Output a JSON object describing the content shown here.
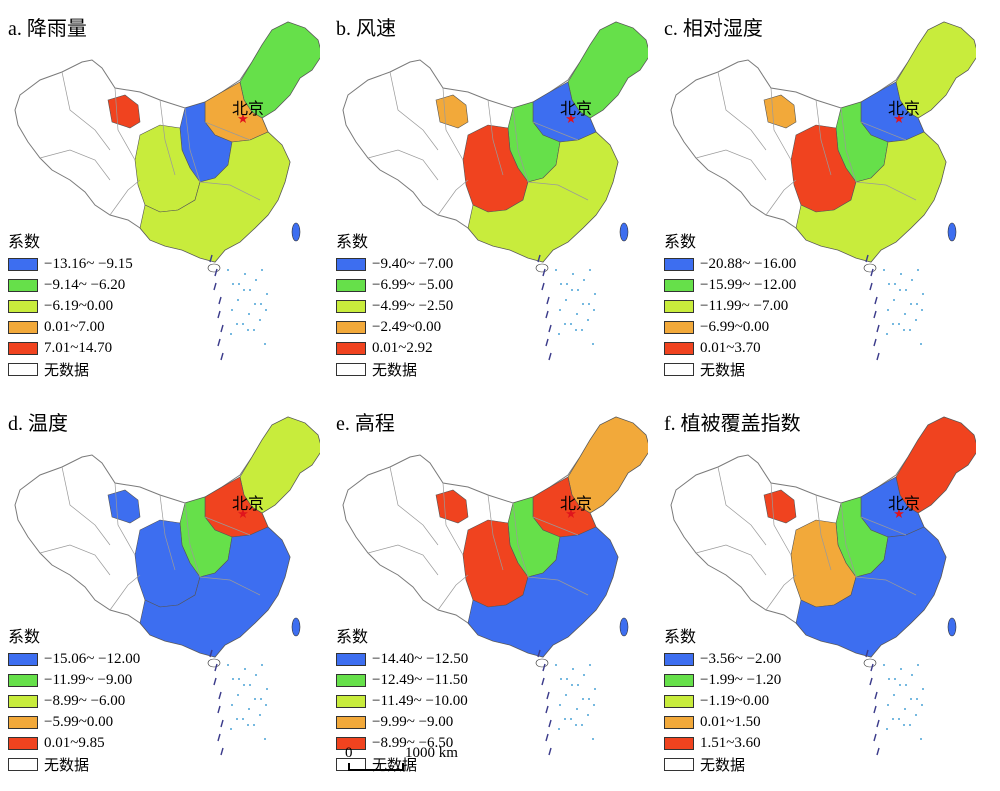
{
  "legend_title": "系数",
  "no_data_label": "无数据",
  "capital_label": "北京",
  "scale_bar": {
    "start": "0",
    "end": "1000 km"
  },
  "class_colors": [
    "#3d6ef0",
    "#66e04a",
    "#c8ec3c",
    "#f2a93a",
    "#f0431f",
    "#ffffff"
  ],
  "panels": [
    {
      "title": "a. 降雨量",
      "legend": [
        "−13.16~ −9.15",
        "−9.14~ −6.20",
        "−6.19~0.00",
        "0.01~7.00",
        "7.01~14.70"
      ],
      "dominant_classes": {
        "northeast": 1,
        "north": 3,
        "northcentral": 0,
        "central": 2,
        "south": 2,
        "west": 4
      }
    },
    {
      "title": "b. 风速",
      "legend": [
        "−9.40~ −7.00",
        "−6.99~ −5.00",
        "−4.99~ −2.50",
        "−2.49~0.00",
        "0.01~2.92"
      ],
      "dominant_classes": {
        "northeast": 1,
        "north": 0,
        "northcentral": 1,
        "central": 4,
        "south": 2,
        "west": 3
      }
    },
    {
      "title": "c. 相对湿度",
      "legend": [
        "−20.88~ −16.00",
        "−15.99~ −12.00",
        "−11.99~ −7.00",
        "−6.99~0.00",
        "0.01~3.70"
      ],
      "dominant_classes": {
        "northeast": 2,
        "north": 0,
        "northcentral": 1,
        "central": 4,
        "south": 2,
        "west": 3
      }
    },
    {
      "title": "d. 温度",
      "legend": [
        "−15.06~ −12.00",
        "−11.99~ −9.00",
        "−8.99~ −6.00",
        "−5.99~0.00",
        "0.01~9.85"
      ],
      "dominant_classes": {
        "northeast": 2,
        "north": 4,
        "northcentral": 1,
        "central": 0,
        "south": 0,
        "west": 0
      }
    },
    {
      "title": "e. 高程",
      "legend": [
        "−14.40~ −12.50",
        "−12.49~ −11.50",
        "−11.49~ −10.00",
        "−9.99~ −9.00",
        "−8.99~ −6.50"
      ],
      "dominant_classes": {
        "northeast": 3,
        "north": 4,
        "northcentral": 1,
        "central": 4,
        "south": 0,
        "west": 4
      }
    },
    {
      "title": "f. 植被覆盖指数",
      "legend": [
        "−3.56~ −2.00",
        "−1.99~ −1.20",
        "−1.19~0.00",
        "0.01~1.50",
        "1.51~3.60"
      ],
      "dominant_classes": {
        "northeast": 4,
        "north": 0,
        "northcentral": 1,
        "central": 3,
        "south": 0,
        "west": 4
      }
    }
  ]
}
